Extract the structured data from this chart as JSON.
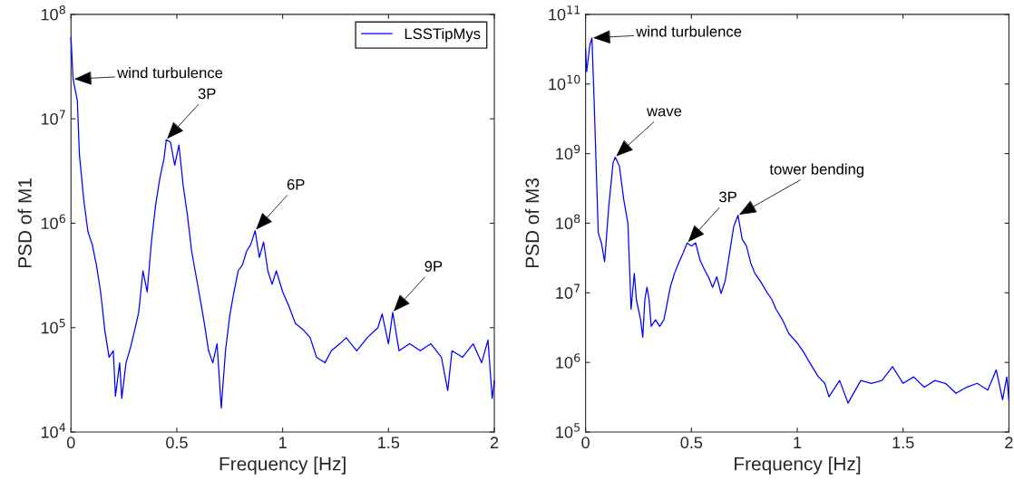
{
  "chart_data": [
    {
      "type": "line",
      "xlabel": "Frequency [Hz]",
      "ylabel": "PSD of M1",
      "log": "y",
      "grid": false,
      "legend": "top right",
      "xlim": [
        0,
        2
      ],
      "ylim": [
        10000,
        100000000
      ],
      "xticks": [
        0,
        0.5,
        1,
        1.5,
        2
      ],
      "yticks": [
        {
          "value": 10000,
          "label": "10$^{4}$"
        },
        {
          "value": 100000,
          "label": "10$^{5}$"
        },
        {
          "value": 1000000,
          "label": "10$^{6}$"
        },
        {
          "value": 10000000,
          "label": "10$^{7}$"
        },
        {
          "value": 100000000,
          "label": "10$^{8}$"
        }
      ],
      "series": [
        {
          "name": "LSSTipMys",
          "color": "#0000ff",
          "x": [
            0,
            0.01,
            0.03,
            0.04,
            0.06,
            0.08,
            0.1,
            0.12,
            0.14,
            0.16,
            0.18,
            0.2,
            0.21,
            0.23,
            0.24,
            0.26,
            0.28,
            0.3,
            0.32,
            0.34,
            0.36,
            0.38,
            0.4,
            0.42,
            0.44,
            0.45,
            0.47,
            0.49,
            0.51,
            0.53,
            0.55,
            0.57,
            0.59,
            0.61,
            0.63,
            0.65,
            0.67,
            0.69,
            0.71,
            0.73,
            0.75,
            0.77,
            0.79,
            0.81,
            0.83,
            0.85,
            0.87,
            0.89,
            0.91,
            0.93,
            0.95,
            0.97,
            1.0,
            1.03,
            1.06,
            1.1,
            1.13,
            1.16,
            1.2,
            1.23,
            1.27,
            1.3,
            1.35,
            1.4,
            1.45,
            1.47,
            1.5,
            1.52,
            1.55,
            1.6,
            1.65,
            1.7,
            1.75,
            1.78,
            1.8,
            1.85,
            1.9,
            1.94,
            1.97,
            1.99,
            2.0
          ],
          "values": [
            60000000,
            24000000,
            15000000,
            4500000,
            1700000,
            830000,
            630000,
            400000,
            220000,
            94000,
            52000,
            60000,
            22000,
            46000,
            21000,
            46000,
            63000,
            93000,
            140000,
            350000,
            220000,
            660000,
            1500000,
            2700000,
            4200000,
            6300000,
            6000000,
            3600000,
            5600000,
            2300000,
            1200000,
            540000,
            320000,
            190000,
            110000,
            60000,
            46000,
            70000,
            17000,
            60000,
            130000,
            220000,
            350000,
            400000,
            540000,
            630000,
            850000,
            470000,
            660000,
            350000,
            260000,
            350000,
            220000,
            160000,
            110000,
            94000,
            80000,
            52000,
            46000,
            60000,
            70000,
            80000,
            60000,
            80000,
            100000,
            135000,
            70000,
            140000,
            60000,
            70000,
            60000,
            70000,
            52000,
            25000,
            60000,
            52000,
            70000,
            46000,
            76000,
            21000,
            31000
          ]
        }
      ],
      "annotations": [
        {
          "text": "wind turbulence",
          "x": 0.01,
          "y": 24000000
        },
        {
          "text": "3P",
          "x": 0.45,
          "y": 6300000
        },
        {
          "text": "6P",
          "x": 0.87,
          "y": 850000
        },
        {
          "text": "9P",
          "x": 1.52,
          "y": 140000
        }
      ]
    },
    {
      "type": "line",
      "xlabel": "Frequency [Hz]",
      "ylabel": "PSD of M3",
      "log": "y",
      "grid": false,
      "xlim": [
        0,
        2
      ],
      "ylim": [
        100000,
        100000000000
      ],
      "xticks": [
        0,
        0.5,
        1,
        1.5,
        2
      ],
      "yticks": [
        {
          "value": 100000,
          "label": "10$^{5}$"
        },
        {
          "value": 1000000,
          "label": "10$^{6}$"
        },
        {
          "value": 10000000,
          "label": "10$^{7}$"
        },
        {
          "value": 100000000,
          "label": "10$^{8}$"
        },
        {
          "value": 1000000000,
          "label": "10$^{9}$"
        },
        {
          "value": 10000000000,
          "label": "10$^{10}$"
        },
        {
          "value": 100000000000,
          "label": "10$^{11}$"
        }
      ],
      "series": [
        {
          "color": "#0000ff",
          "x": [
            0,
            0.005,
            0.02,
            0.03,
            0.04,
            0.05,
            0.06,
            0.075,
            0.09,
            0.11,
            0.13,
            0.14,
            0.16,
            0.18,
            0.2,
            0.215,
            0.23,
            0.24,
            0.26,
            0.27,
            0.28,
            0.29,
            0.3,
            0.31,
            0.33,
            0.35,
            0.37,
            0.38,
            0.4,
            0.42,
            0.44,
            0.46,
            0.48,
            0.5,
            0.52,
            0.54,
            0.56,
            0.58,
            0.6,
            0.62,
            0.64,
            0.66,
            0.68,
            0.7,
            0.72,
            0.74,
            0.76,
            0.78,
            0.8,
            0.83,
            0.86,
            0.88,
            0.9,
            0.93,
            0.96,
            1.0,
            1.03,
            1.06,
            1.1,
            1.13,
            1.15,
            1.2,
            1.24,
            1.3,
            1.35,
            1.4,
            1.45,
            1.5,
            1.55,
            1.6,
            1.65,
            1.7,
            1.75,
            1.8,
            1.85,
            1.9,
            1.94,
            1.97,
            1.99,
            2.0
          ],
          "values": [
            32000000000,
            15000000000,
            36000000000,
            46000000000,
            6200000000,
            660000000,
            72000000,
            52000000,
            28000000,
            180000000,
            740000000,
            890000000,
            660000000,
            220000000,
            100000000,
            5800000,
            19000000,
            8000000,
            4100000,
            2300000,
            8000000,
            12000000,
            8000000,
            3300000,
            4100000,
            3300000,
            4100000,
            5800000,
            12000000,
            19000000,
            27000000,
            37000000,
            52000000,
            47000000,
            52000000,
            30000000,
            22000000,
            17000000,
            12000000,
            17000000,
            9800000,
            15000000,
            37000000,
            90000000,
            130000000,
            59000000,
            47000000,
            27000000,
            19000000,
            14000000,
            9800000,
            8000000,
            5800000,
            4100000,
            2600000,
            1900000,
            1400000,
            980000,
            620000,
            500000,
            320000,
            550000,
            260000,
            550000,
            500000,
            550000,
            870000,
            500000,
            620000,
            440000,
            550000,
            500000,
            360000,
            440000,
            500000,
            400000,
            780000,
            290000,
            620000,
            290000
          ]
        }
      ],
      "annotations": [
        {
          "text": "wind turbulence",
          "x": 0.03,
          "y": 46000000000
        },
        {
          "text": "wave",
          "x": 0.14,
          "y": 890000000
        },
        {
          "text": "3P",
          "x": 0.48,
          "y": 52000000
        },
        {
          "text": "tower bending",
          "x": 0.72,
          "y": 130000000
        }
      ]
    }
  ]
}
